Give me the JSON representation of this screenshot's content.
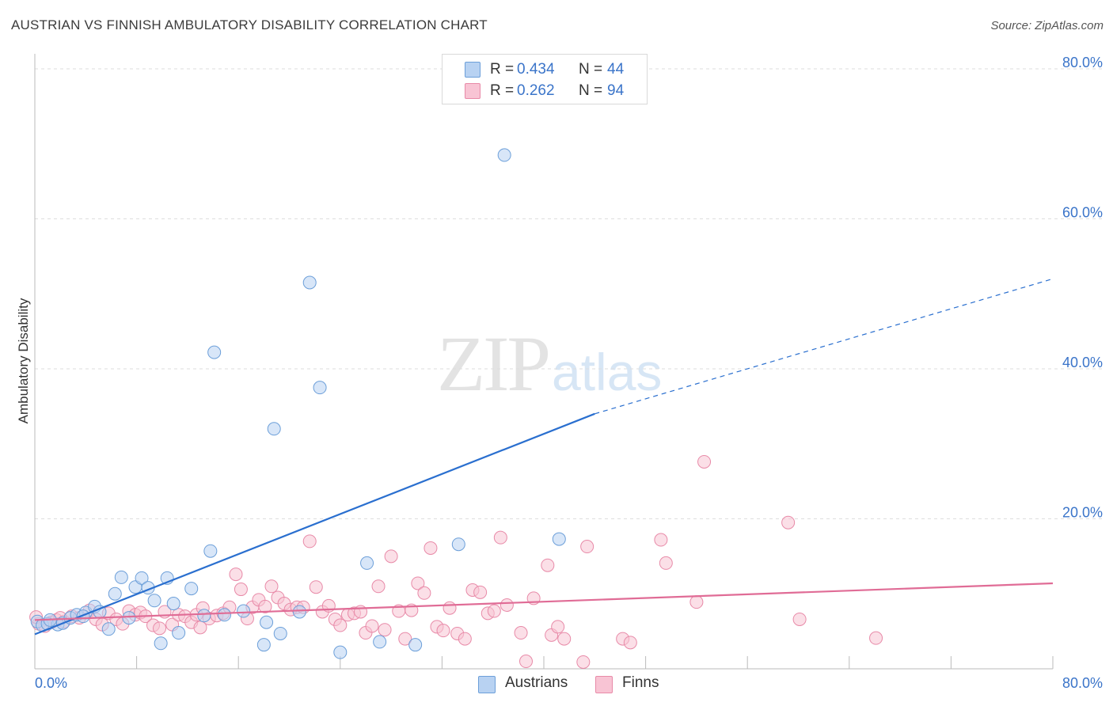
{
  "title": "AUSTRIAN VS FINNISH AMBULATORY DISABILITY CORRELATION CHART",
  "source": "Source: ZipAtlas.com",
  "watermark": {
    "zip": "ZIP",
    "atlas": "atlas"
  },
  "legend_top": [
    {
      "r_label": "R =",
      "r_value": "0.434",
      "n_label": "N =",
      "n_value": "44"
    },
    {
      "r_label": "R =",
      "r_value": "0.262",
      "n_label": "N =",
      "n_value": "94"
    }
  ],
  "legend_bottom": [
    "Austrians",
    "Finns"
  ],
  "colors": {
    "austrians_fill": "#b8d2f2",
    "austrians_stroke": "#6c9fd9",
    "austrians_line": "#2a6fcf",
    "finns_fill": "#f8c4d4",
    "finns_stroke": "#e88aa8",
    "finns_line": "#e06c96",
    "tick_label": "#3a74c9",
    "grid": "#dedede"
  },
  "chart_data": {
    "type": "scatter",
    "title": "AUSTRIAN VS FINNISH AMBULATORY DISABILITY CORRELATION CHART",
    "xlabel": "",
    "ylabel": "Ambulatory Disability",
    "xlim": [
      0,
      80
    ],
    "ylim": [
      0,
      82
    ],
    "x_tick_labels": [
      "0.0%",
      "80.0%"
    ],
    "y_ticks": [
      20,
      40,
      60,
      80
    ],
    "y_tick_labels": [
      "20.0%",
      "40.0%",
      "60.0%",
      "80.0%"
    ],
    "grid": true,
    "legend_position": "top-center and bottom",
    "series": [
      {
        "name": "Austrians",
        "r": 0.434,
        "n": 44,
        "points": [
          [
            0.2,
            6.3
          ],
          [
            0.6,
            5.8
          ],
          [
            1.0,
            6.0
          ],
          [
            1.8,
            5.9
          ],
          [
            2.2,
            6.1
          ],
          [
            2.8,
            6.8
          ],
          [
            3.3,
            7.2
          ],
          [
            4.0,
            7.5
          ],
          [
            4.7,
            8.3
          ],
          [
            5.1,
            7.6
          ],
          [
            5.8,
            5.3
          ],
          [
            6.3,
            10.0
          ],
          [
            6.8,
            12.2
          ],
          [
            7.4,
            6.8
          ],
          [
            7.9,
            10.9
          ],
          [
            8.4,
            12.1
          ],
          [
            8.9,
            10.8
          ],
          [
            9.4,
            9.1
          ],
          [
            9.9,
            3.4
          ],
          [
            10.4,
            12.1
          ],
          [
            10.9,
            8.7
          ],
          [
            11.3,
            4.8
          ],
          [
            12.3,
            10.7
          ],
          [
            13.3,
            7.1
          ],
          [
            13.8,
            15.7
          ],
          [
            14.1,
            42.2
          ],
          [
            14.9,
            7.2
          ],
          [
            16.4,
            7.7
          ],
          [
            18.0,
            3.2
          ],
          [
            18.2,
            6.2
          ],
          [
            18.8,
            32.0
          ],
          [
            19.3,
            4.7
          ],
          [
            20.8,
            7.6
          ],
          [
            21.6,
            51.5
          ],
          [
            22.4,
            37.5
          ],
          [
            24.0,
            2.2
          ],
          [
            26.1,
            14.1
          ],
          [
            27.1,
            3.6
          ],
          [
            29.9,
            3.2
          ],
          [
            33.3,
            16.6
          ],
          [
            36.9,
            68.5
          ],
          [
            41.2,
            17.3
          ],
          [
            1.2,
            6.5
          ],
          [
            3.8,
            7.0
          ]
        ]
      },
      {
        "name": "Finns",
        "r": 0.262,
        "n": 94,
        "points": [
          [
            0.3,
            6.0
          ],
          [
            0.8,
            5.7
          ],
          [
            1.3,
            6.2
          ],
          [
            1.7,
            6.5
          ],
          [
            2.3,
            6.3
          ],
          [
            2.9,
            7.0
          ],
          [
            3.5,
            6.8
          ],
          [
            4.3,
            7.8
          ],
          [
            4.8,
            6.6
          ],
          [
            5.3,
            5.9
          ],
          [
            5.8,
            7.4
          ],
          [
            6.4,
            6.6
          ],
          [
            6.9,
            6.0
          ],
          [
            7.4,
            7.7
          ],
          [
            7.9,
            7.2
          ],
          [
            8.3,
            7.5
          ],
          [
            8.7,
            7.0
          ],
          [
            9.3,
            5.8
          ],
          [
            9.8,
            5.4
          ],
          [
            10.2,
            7.6
          ],
          [
            10.8,
            5.9
          ],
          [
            11.3,
            7.2
          ],
          [
            11.8,
            7.0
          ],
          [
            12.3,
            6.2
          ],
          [
            12.7,
            7.2
          ],
          [
            13.0,
            5.5
          ],
          [
            13.2,
            8.1
          ],
          [
            13.7,
            6.7
          ],
          [
            14.3,
            7.1
          ],
          [
            14.8,
            7.4
          ],
          [
            15.3,
            8.2
          ],
          [
            15.8,
            12.6
          ],
          [
            16.2,
            10.6
          ],
          [
            16.7,
            6.7
          ],
          [
            17.1,
            8.2
          ],
          [
            17.6,
            9.2
          ],
          [
            18.1,
            8.3
          ],
          [
            18.6,
            11.0
          ],
          [
            19.1,
            9.5
          ],
          [
            19.6,
            8.7
          ],
          [
            20.1,
            7.9
          ],
          [
            20.6,
            8.2
          ],
          [
            21.1,
            8.2
          ],
          [
            21.6,
            17.0
          ],
          [
            22.1,
            10.9
          ],
          [
            22.6,
            7.6
          ],
          [
            23.1,
            8.4
          ],
          [
            23.6,
            6.6
          ],
          [
            24.0,
            5.8
          ],
          [
            24.6,
            7.2
          ],
          [
            25.1,
            7.4
          ],
          [
            25.6,
            7.6
          ],
          [
            26.0,
            4.8
          ],
          [
            26.5,
            5.7
          ],
          [
            27.0,
            11.0
          ],
          [
            27.5,
            5.2
          ],
          [
            28.0,
            15.0
          ],
          [
            28.6,
            7.7
          ],
          [
            29.1,
            4.0
          ],
          [
            29.6,
            7.8
          ],
          [
            30.1,
            11.4
          ],
          [
            30.6,
            10.1
          ],
          [
            31.1,
            16.1
          ],
          [
            31.6,
            5.6
          ],
          [
            32.1,
            5.1
          ],
          [
            32.6,
            8.1
          ],
          [
            33.2,
            4.7
          ],
          [
            33.8,
            4.0
          ],
          [
            34.4,
            10.5
          ],
          [
            35.0,
            10.2
          ],
          [
            35.6,
            7.4
          ],
          [
            36.1,
            7.7
          ],
          [
            36.6,
            17.5
          ],
          [
            37.1,
            8.5
          ],
          [
            38.2,
            4.8
          ],
          [
            38.6,
            1.0
          ],
          [
            39.2,
            9.4
          ],
          [
            40.3,
            13.8
          ],
          [
            40.6,
            4.5
          ],
          [
            41.1,
            5.6
          ],
          [
            41.6,
            4.0
          ],
          [
            43.1,
            0.9
          ],
          [
            43.4,
            16.3
          ],
          [
            46.2,
            4.0
          ],
          [
            46.8,
            3.5
          ],
          [
            49.2,
            17.2
          ],
          [
            49.6,
            14.1
          ],
          [
            52.0,
            8.9
          ],
          [
            52.6,
            27.6
          ],
          [
            59.2,
            19.5
          ],
          [
            60.1,
            6.6
          ],
          [
            66.1,
            4.1
          ],
          [
            0.1,
            6.9
          ],
          [
            2.0,
            6.8
          ]
        ]
      }
    ],
    "trend_lines": [
      {
        "series": "Austrians",
        "solid": [
          [
            0,
            4.6
          ],
          [
            44,
            34.0
          ]
        ],
        "dashed": [
          [
            44,
            34.0
          ],
          [
            80,
            52.0
          ]
        ]
      },
      {
        "series": "Finns",
        "solid": [
          [
            0,
            6.5
          ],
          [
            80,
            11.4
          ]
        ]
      }
    ]
  }
}
